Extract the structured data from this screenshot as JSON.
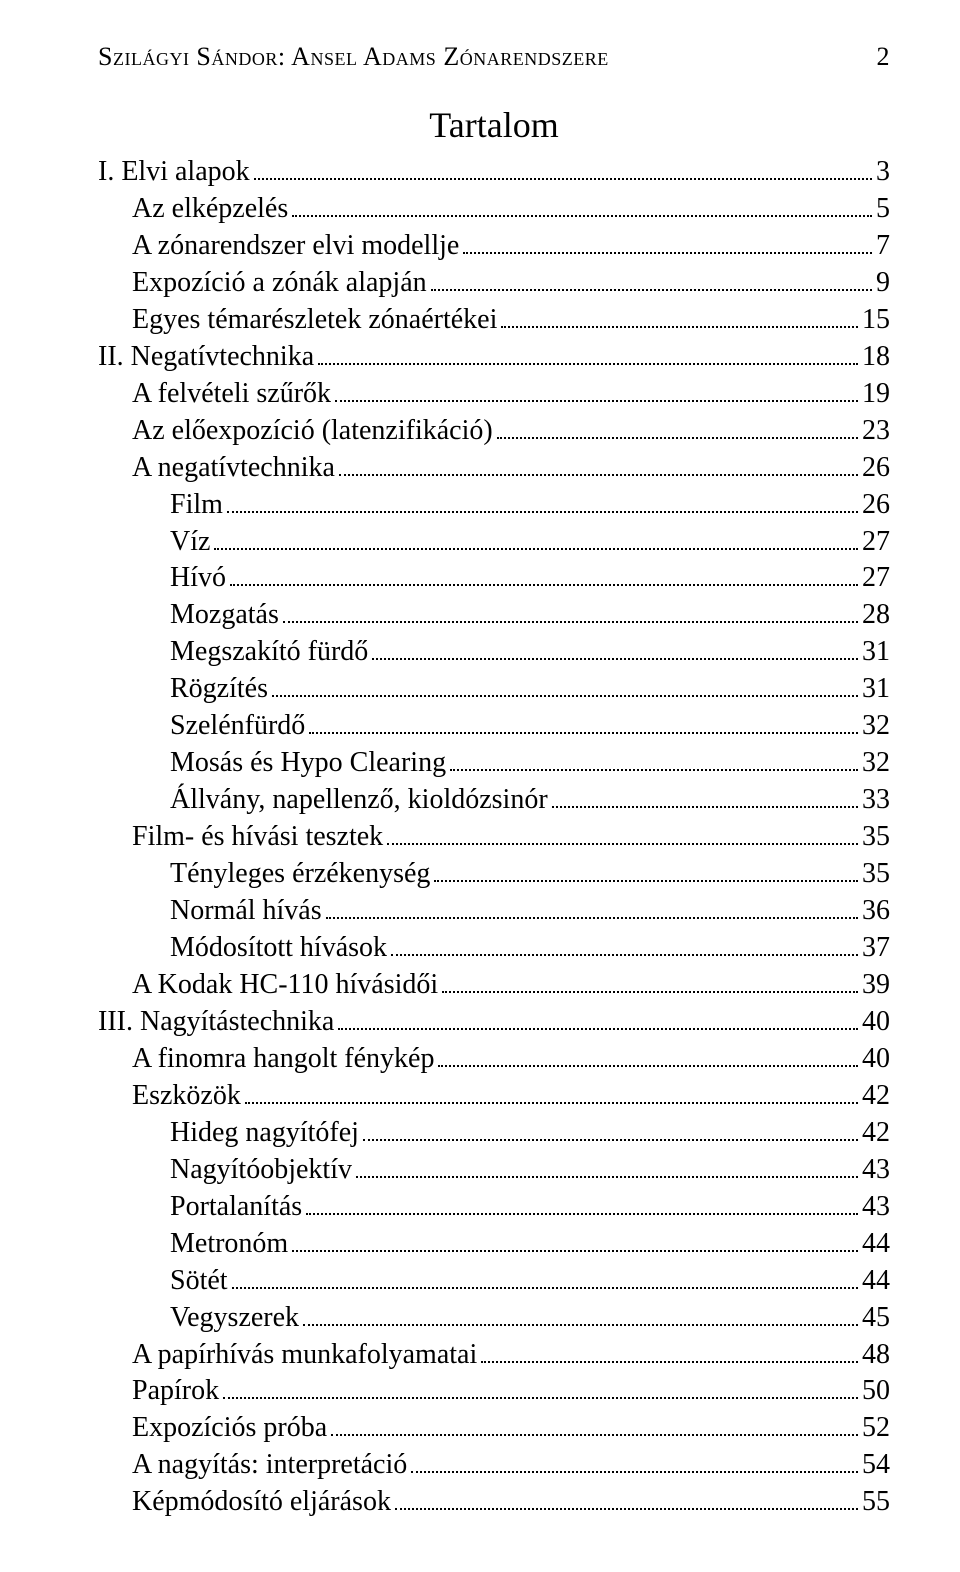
{
  "header": {
    "running_head": "Szilágyi Sándor: Ansel Adams Zónarendszere",
    "page_number": "2"
  },
  "title": "Tartalom",
  "toc": [
    {
      "label": "I. Elvi alapok",
      "page": "3",
      "indent": 0
    },
    {
      "label": "Az elképzelés",
      "page": "5",
      "indent": 1
    },
    {
      "label": "A zónarendszer elvi modellje",
      "page": "7",
      "indent": 1
    },
    {
      "label": "Expozíció a zónák alapján",
      "page": "9",
      "indent": 1
    },
    {
      "label": "Egyes témarészletek zónaértékei",
      "page": "15",
      "indent": 1
    },
    {
      "label": "II. Negatívtechnika",
      "page": "18",
      "indent": 0
    },
    {
      "label": "A felvételi szűrők",
      "page": "19",
      "indent": 1
    },
    {
      "label": "Az előexpozíció (latenzifikáció)",
      "page": "23",
      "indent": 1
    },
    {
      "label": "A negatívtechnika",
      "page": "26",
      "indent": 1
    },
    {
      "label": "Film",
      "page": "26",
      "indent": 2
    },
    {
      "label": "Víz",
      "page": "27",
      "indent": 2
    },
    {
      "label": "Hívó",
      "page": "27",
      "indent": 2
    },
    {
      "label": "Mozgatás",
      "page": "28",
      "indent": 2
    },
    {
      "label": "Megszakító fürdő",
      "page": "31",
      "indent": 2
    },
    {
      "label": "Rögzítés",
      "page": "31",
      "indent": 2
    },
    {
      "label": "Szelénfürdő",
      "page": "32",
      "indent": 2
    },
    {
      "label": "Mosás és Hypo Clearing",
      "page": "32",
      "indent": 2
    },
    {
      "label": "Állvány, napellenző, kioldózsinór",
      "page": "33",
      "indent": 2
    },
    {
      "label": "Film- és hívási tesztek",
      "page": "35",
      "indent": 1
    },
    {
      "label": "Tényleges érzékenység",
      "page": "35",
      "indent": 2
    },
    {
      "label": "Normál hívás",
      "page": "36",
      "indent": 2
    },
    {
      "label": "Módosított hívások",
      "page": "37",
      "indent": 2
    },
    {
      "label": "A Kodak HC-110 hívásidői",
      "page": "39",
      "indent": 1
    },
    {
      "label": "III. Nagyítástechnika",
      "page": "40",
      "indent": 0
    },
    {
      "label": "A finomra hangolt fénykép",
      "page": "40",
      "indent": 1
    },
    {
      "label": "Eszközök",
      "page": "42",
      "indent": 1
    },
    {
      "label": "Hideg nagyítófej",
      "page": "42",
      "indent": 2
    },
    {
      "label": "Nagyítóobjektív",
      "page": "43",
      "indent": 2
    },
    {
      "label": "Portalanítás",
      "page": "43",
      "indent": 2
    },
    {
      "label": "Metronóm",
      "page": "44",
      "indent": 2
    },
    {
      "label": "Sötét",
      "page": "44",
      "indent": 2
    },
    {
      "label": "Vegyszerek",
      "page": "45",
      "indent": 2
    },
    {
      "label": "A papírhívás munkafolyamatai",
      "page": "48",
      "indent": 1
    },
    {
      "label": "Papírok",
      "page": "50",
      "indent": 1
    },
    {
      "label": "Expozíciós próba",
      "page": "52",
      "indent": 1
    },
    {
      "label": "A nagyítás: interpretáció",
      "page": "54",
      "indent": 1
    },
    {
      "label": "Képmódosító eljárások",
      "page": "55",
      "indent": 1
    }
  ]
}
